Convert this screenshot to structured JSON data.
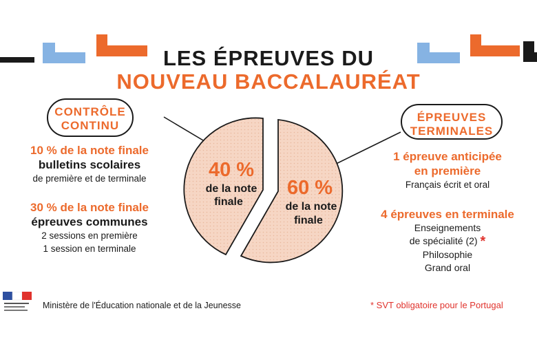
{
  "title": {
    "line1": "LES ÉPREUVES DU",
    "line2": "NOUVEAU BACCALAURÉAT"
  },
  "left": {
    "badge_line1": "CONTRÔLE",
    "badge_line2": "CONTINU",
    "item1": {
      "percent": "10 % de la note finale",
      "label": "bulletins scolaires",
      "detail": "de première et de terminale"
    },
    "item2": {
      "percent": "30 % de la note finale",
      "label": "épreuves communes",
      "detail1": "2 sessions en première",
      "detail2": "1 session en terminale"
    }
  },
  "right": {
    "badge_line1": "ÉPREUVES",
    "badge_line2": "TERMINALES",
    "item1": {
      "title1": "1 épreuve anticipée",
      "title2": "en première",
      "detail": "Français écrit et oral"
    },
    "item2": {
      "title": "4 épreuves en terminale",
      "detail1": "Enseignements",
      "detail2": "de spécialité (2)",
      "asterisk": "*",
      "detail3": "Philosophie",
      "detail4": "Grand oral"
    }
  },
  "pie": {
    "left_percent": "40 %",
    "left_line1": "de la note",
    "left_line2": "finale",
    "right_percent": "60 %",
    "right_line1": "de la note",
    "right_line2": "finale"
  },
  "footer": {
    "ministry": "Ministère de l'Éducation nationale et de la Jeunesse",
    "note": "* SVT obligatoire pour le Portugal"
  },
  "colors": {
    "orange": "#ec6a2c",
    "blue": "#86b3e3",
    "pie_fill": "#f6d6c4",
    "red": "#e0322c"
  }
}
